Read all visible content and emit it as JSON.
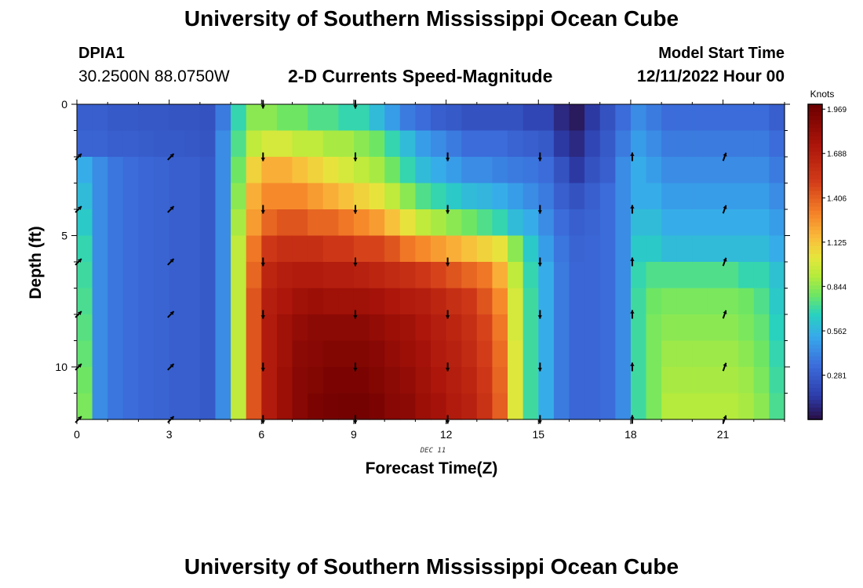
{
  "header": {
    "title": "University of Southern Mississippi Ocean Cube",
    "station_id": "DPIA1",
    "coordinates": "30.2500N  88.0750W",
    "model_start_label": "Model Start Time",
    "model_start_value": "12/11/2022 Hour 00"
  },
  "footer": {
    "title": "University of Southern Mississippi Ocean Cube"
  },
  "chart_data": {
    "type": "heatmap",
    "title": "2-D Currents Speed-Magnitude",
    "xlabel": "Forecast Time(Z)",
    "ylabel": "Depth (ft)",
    "date_label": "DEC 11",
    "x_ticks": [
      0,
      3,
      6,
      9,
      12,
      15,
      18,
      21
    ],
    "y_ticks": [
      0,
      5,
      10
    ],
    "xlim": [
      0,
      23
    ],
    "ylim": [
      0,
      12
    ],
    "colorbar": {
      "label": "Knots",
      "ticks": [
        "0.281",
        "0.562",
        "0.844",
        "1.125",
        "1.406",
        "1.688",
        "1.969"
      ],
      "range": [
        0,
        2.0
      ]
    },
    "x_hours": [
      0,
      0.5,
      1,
      1.5,
      2,
      2.5,
      3,
      3.5,
      4,
      4.5,
      5,
      5.5,
      6,
      6.5,
      7,
      7.5,
      8,
      8.5,
      9,
      9.5,
      10,
      10.5,
      11,
      11.5,
      12,
      12.5,
      13,
      13.5,
      14,
      14.5,
      15,
      15.5,
      16,
      16.5,
      17,
      17.5,
      18,
      18.5,
      19,
      19.5,
      20,
      20.5,
      21,
      21.5,
      22,
      22.5
    ],
    "depth_rows": [
      0,
      1,
      2,
      3,
      4,
      5,
      6,
      7,
      8,
      9,
      10,
      11
    ],
    "speed_knots": [
      [
        0.3,
        0.3,
        0.28,
        0.28,
        0.27,
        0.27,
        0.26,
        0.26,
        0.25,
        0.4,
        0.7,
        0.85,
        0.85,
        0.8,
        0.8,
        0.75,
        0.75,
        0.7,
        0.7,
        0.6,
        0.5,
        0.4,
        0.35,
        0.3,
        0.28,
        0.25,
        0.25,
        0.25,
        0.25,
        0.2,
        0.2,
        0.1,
        0.05,
        0.15,
        0.25,
        0.35,
        0.45,
        0.4,
        0.35,
        0.35,
        0.35,
        0.35,
        0.35,
        0.35,
        0.35,
        0.3
      ],
      [
        0.32,
        0.32,
        0.3,
        0.3,
        0.29,
        0.28,
        0.28,
        0.27,
        0.26,
        0.45,
        0.75,
        0.95,
        1.0,
        1.0,
        0.95,
        0.95,
        0.9,
        0.9,
        0.85,
        0.8,
        0.7,
        0.6,
        0.5,
        0.45,
        0.4,
        0.35,
        0.35,
        0.35,
        0.32,
        0.3,
        0.28,
        0.15,
        0.1,
        0.2,
        0.28,
        0.4,
        0.5,
        0.45,
        0.4,
        0.4,
        0.4,
        0.4,
        0.4,
        0.4,
        0.4,
        0.35
      ],
      [
        0.55,
        0.45,
        0.38,
        0.35,
        0.33,
        0.32,
        0.3,
        0.3,
        0.28,
        0.45,
        0.8,
        1.1,
        1.2,
        1.2,
        1.15,
        1.1,
        1.05,
        1.0,
        0.95,
        0.9,
        0.8,
        0.7,
        0.6,
        0.55,
        0.5,
        0.45,
        0.45,
        0.42,
        0.4,
        0.38,
        0.35,
        0.25,
        0.15,
        0.25,
        0.3,
        0.45,
        0.55,
        0.5,
        0.45,
        0.45,
        0.45,
        0.45,
        0.45,
        0.45,
        0.45,
        0.4
      ],
      [
        0.6,
        0.45,
        0.38,
        0.35,
        0.33,
        0.32,
        0.3,
        0.3,
        0.28,
        0.45,
        0.85,
        1.2,
        1.3,
        1.3,
        1.3,
        1.25,
        1.2,
        1.15,
        1.1,
        1.05,
        0.95,
        0.85,
        0.75,
        0.7,
        0.65,
        0.6,
        0.58,
        0.55,
        0.5,
        0.45,
        0.4,
        0.3,
        0.25,
        0.3,
        0.35,
        0.45,
        0.55,
        0.55,
        0.5,
        0.5,
        0.5,
        0.5,
        0.5,
        0.5,
        0.5,
        0.45
      ],
      [
        0.65,
        0.45,
        0.38,
        0.35,
        0.33,
        0.32,
        0.3,
        0.3,
        0.28,
        0.45,
        0.9,
        1.25,
        1.4,
        1.45,
        1.45,
        1.4,
        1.4,
        1.35,
        1.3,
        1.25,
        1.15,
        1.05,
        0.95,
        0.9,
        0.85,
        0.8,
        0.75,
        0.7,
        0.6,
        0.55,
        0.45,
        0.35,
        0.3,
        0.32,
        0.35,
        0.45,
        0.6,
        0.6,
        0.55,
        0.55,
        0.55,
        0.55,
        0.55,
        0.55,
        0.55,
        0.5
      ],
      [
        0.7,
        0.45,
        0.38,
        0.35,
        0.33,
        0.32,
        0.3,
        0.3,
        0.28,
        0.45,
        0.95,
        1.35,
        1.55,
        1.6,
        1.6,
        1.6,
        1.55,
        1.55,
        1.5,
        1.5,
        1.45,
        1.35,
        1.3,
        1.25,
        1.2,
        1.15,
        1.1,
        1.05,
        0.85,
        0.65,
        0.5,
        0.38,
        0.32,
        0.33,
        0.35,
        0.45,
        0.65,
        0.65,
        0.6,
        0.6,
        0.6,
        0.6,
        0.6,
        0.6,
        0.6,
        0.55
      ],
      [
        0.72,
        0.45,
        0.38,
        0.35,
        0.33,
        0.32,
        0.3,
        0.3,
        0.28,
        0.45,
        0.95,
        1.4,
        1.65,
        1.7,
        1.72,
        1.72,
        1.7,
        1.7,
        1.68,
        1.65,
        1.62,
        1.6,
        1.55,
        1.5,
        1.45,
        1.4,
        1.35,
        1.2,
        0.95,
        0.7,
        0.55,
        0.4,
        0.33,
        0.33,
        0.35,
        0.45,
        0.7,
        0.75,
        0.75,
        0.75,
        0.75,
        0.75,
        0.75,
        0.7,
        0.7,
        0.62
      ],
      [
        0.74,
        0.45,
        0.38,
        0.35,
        0.33,
        0.32,
        0.3,
        0.3,
        0.28,
        0.45,
        0.95,
        1.45,
        1.7,
        1.75,
        1.8,
        1.82,
        1.8,
        1.8,
        1.8,
        1.78,
        1.75,
        1.72,
        1.7,
        1.65,
        1.6,
        1.55,
        1.45,
        1.3,
        1.0,
        0.72,
        0.55,
        0.4,
        0.33,
        0.33,
        0.35,
        0.45,
        0.72,
        0.8,
        0.82,
        0.82,
        0.82,
        0.82,
        0.82,
        0.8,
        0.75,
        0.65
      ],
      [
        0.76,
        0.45,
        0.38,
        0.35,
        0.33,
        0.32,
        0.3,
        0.3,
        0.28,
        0.45,
        0.95,
        1.45,
        1.72,
        1.8,
        1.85,
        1.88,
        1.88,
        1.88,
        1.88,
        1.85,
        1.82,
        1.8,
        1.75,
        1.7,
        1.65,
        1.6,
        1.5,
        1.35,
        1.0,
        0.72,
        0.55,
        0.4,
        0.33,
        0.33,
        0.35,
        0.45,
        0.72,
        0.82,
        0.85,
        0.85,
        0.85,
        0.85,
        0.85,
        0.82,
        0.78,
        0.68
      ],
      [
        0.78,
        0.45,
        0.38,
        0.35,
        0.33,
        0.32,
        0.3,
        0.3,
        0.28,
        0.45,
        0.95,
        1.45,
        1.72,
        1.8,
        1.88,
        1.9,
        1.92,
        1.92,
        1.92,
        1.9,
        1.85,
        1.82,
        1.78,
        1.72,
        1.68,
        1.62,
        1.52,
        1.38,
        1.02,
        0.72,
        0.55,
        0.4,
        0.33,
        0.33,
        0.35,
        0.45,
        0.72,
        0.82,
        0.88,
        0.88,
        0.88,
        0.88,
        0.88,
        0.85,
        0.8,
        0.7
      ],
      [
        0.8,
        0.45,
        0.38,
        0.35,
        0.33,
        0.32,
        0.3,
        0.3,
        0.28,
        0.45,
        0.95,
        1.45,
        1.72,
        1.82,
        1.9,
        1.92,
        1.95,
        1.95,
        1.95,
        1.92,
        1.88,
        1.85,
        1.8,
        1.75,
        1.7,
        1.65,
        1.55,
        1.4,
        1.02,
        0.72,
        0.55,
        0.4,
        0.33,
        0.33,
        0.35,
        0.45,
        0.72,
        0.82,
        0.9,
        0.9,
        0.9,
        0.9,
        0.9,
        0.88,
        0.82,
        0.72
      ],
      [
        0.82,
        0.45,
        0.38,
        0.35,
        0.33,
        0.32,
        0.3,
        0.3,
        0.28,
        0.45,
        0.95,
        1.45,
        1.72,
        1.82,
        1.9,
        1.95,
        1.97,
        1.98,
        1.98,
        1.95,
        1.9,
        1.88,
        1.82,
        1.78,
        1.72,
        1.68,
        1.58,
        1.42,
        1.02,
        0.72,
        0.55,
        0.4,
        0.33,
        0.33,
        0.35,
        0.45,
        0.72,
        0.82,
        0.92,
        0.92,
        0.92,
        0.92,
        0.92,
        0.9,
        0.85,
        0.74
      ]
    ],
    "vector_times": [
      0,
      3,
      6,
      9,
      12,
      15,
      18,
      21
    ],
    "vector_depths": [
      0,
      2,
      4,
      6,
      8,
      10,
      12
    ],
    "vector_directions_deg": [
      45,
      45,
      180,
      180,
      180,
      180,
      0,
      20
    ]
  }
}
